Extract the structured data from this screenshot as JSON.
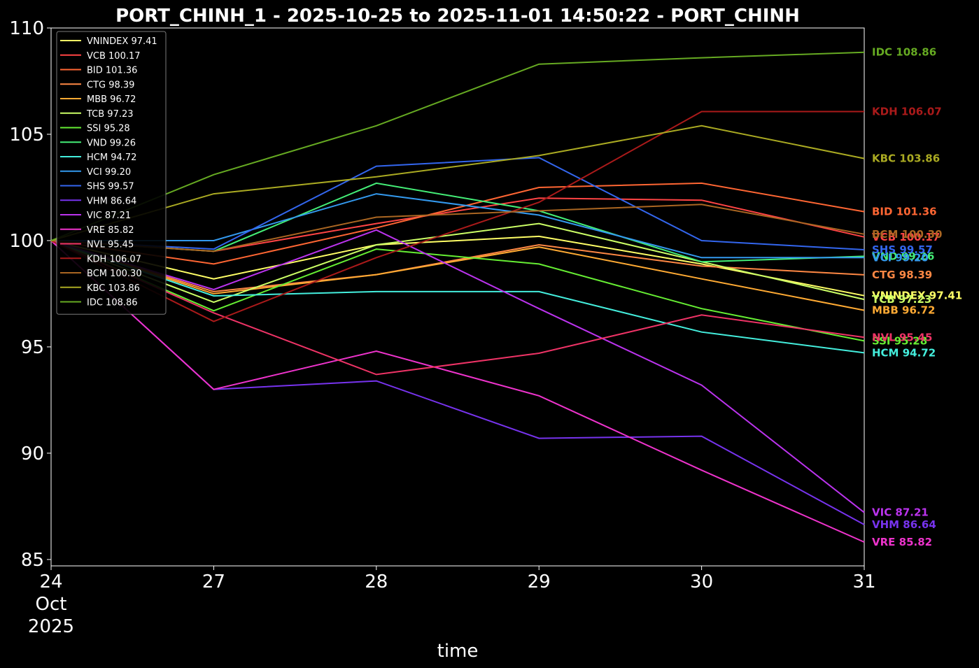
{
  "chart_data": {
    "type": "line",
    "title": "PORT_CHINH_1 - 2025-10-25 to 2025-11-01 14:50:22 - PORT_CHINH",
    "xlabel": "time",
    "ylabel": "",
    "x": [
      "2025-10-24",
      "2025-10-27",
      "2025-10-28",
      "2025-10-29",
      "2025-10-30",
      "2025-10-31"
    ],
    "x_tick_labels": [
      [
        "24",
        "Oct",
        "2025"
      ],
      [
        "27"
      ],
      [
        "28"
      ],
      [
        "29"
      ],
      [
        "30"
      ],
      [
        "31"
      ]
    ],
    "ylim": [
      84.7,
      110
    ],
    "y_ticks": [
      85,
      90,
      95,
      100,
      105,
      110
    ],
    "grid": false,
    "legend_position": "top-left",
    "background": "#000000",
    "series": [
      {
        "name": "VNINDEX",
        "legend": "VNINDEX 97.41",
        "end_label": "VNINDEX 97.41",
        "color": "#ffff66",
        "values": [
          100,
          98.2,
          99.8,
          100.2,
          98.9,
          97.41
        ]
      },
      {
        "name": "VCB",
        "legend": "VCB 100.17",
        "end_label": "VCB 100.17",
        "color": "#ff4444",
        "values": [
          100,
          99.5,
          100.8,
          102.0,
          101.9,
          100.17
        ]
      },
      {
        "name": "BID",
        "legend": "BID 101.36",
        "end_label": "BID 101.36",
        "color": "#ff6633",
        "values": [
          100,
          98.9,
          100.6,
          102.5,
          102.7,
          101.36
        ]
      },
      {
        "name": "CTG",
        "legend": "CTG 98.39",
        "end_label": "CTG 98.39",
        "color": "#ff8844",
        "values": [
          100,
          97.6,
          98.4,
          99.8,
          98.8,
          98.39
        ]
      },
      {
        "name": "MBB",
        "legend": "MBB 96.72",
        "end_label": "MBB 96.72",
        "color": "#ffaa33",
        "values": [
          100,
          97.5,
          98.4,
          99.7,
          98.2,
          96.72
        ]
      },
      {
        "name": "TCB",
        "legend": "TCB 97.23",
        "end_label": "TCB 97.23",
        "color": "#ccff66",
        "values": [
          100,
          97.1,
          99.8,
          100.8,
          99.0,
          97.23
        ]
      },
      {
        "name": "SSI",
        "legend": "SSI 95.28",
        "end_label": "SSI 95.28",
        "color": "#66ee33",
        "values": [
          100,
          96.7,
          99.6,
          98.9,
          96.8,
          95.28
        ]
      },
      {
        "name": "VND",
        "legend": "VND 99.26",
        "end_label": "VND 99.26",
        "color": "#44ee77",
        "values": [
          100,
          99.5,
          102.7,
          101.4,
          99.0,
          99.26
        ]
      },
      {
        "name": "HCM",
        "legend": "HCM 94.72",
        "end_label": "HCM 94.72",
        "color": "#44eedd",
        "values": [
          100,
          97.4,
          97.6,
          97.6,
          95.7,
          94.72
        ]
      },
      {
        "name": "VCI",
        "legend": "VCI 99.20",
        "end_label": "VCI 99.20",
        "color": "#3399ee",
        "values": [
          100,
          100.0,
          102.2,
          101.2,
          99.2,
          99.2
        ]
      },
      {
        "name": "SHS",
        "legend": "SHS 99.57",
        "end_label": "SHS 99.57",
        "color": "#3366ee",
        "values": [
          100,
          99.6,
          103.5,
          103.9,
          100.0,
          99.57
        ]
      },
      {
        "name": "VHM",
        "legend": "VHM 86.64",
        "end_label": "VHM 86.64",
        "color": "#7733ee",
        "values": [
          100,
          93.0,
          93.4,
          90.7,
          90.8,
          86.64
        ]
      },
      {
        "name": "VIC",
        "legend": "VIC 87.21",
        "end_label": "VIC 87.21",
        "color": "#bb33ee",
        "values": [
          100,
          97.7,
          100.5,
          96.8,
          93.2,
          87.21
        ]
      },
      {
        "name": "VRE",
        "legend": "VRE 85.82",
        "end_label": "VRE 85.82",
        "color": "#ee33cc",
        "values": [
          100,
          93.0,
          94.8,
          92.7,
          89.2,
          85.82
        ]
      },
      {
        "name": "NVL",
        "legend": "NVL 95.45",
        "end_label": "NVL 95.45",
        "color": "#ee3366",
        "values": [
          100,
          96.6,
          93.7,
          94.7,
          96.5,
          95.45
        ]
      },
      {
        "name": "KDH",
        "legend": "KDH 106.07",
        "end_label": "KDH 106.07",
        "color": "#aa1a1a",
        "values": [
          100,
          96.2,
          99.2,
          101.8,
          106.07,
          106.07
        ]
      },
      {
        "name": "BCM",
        "legend": "BCM 100.30",
        "end_label": "BCM 100.30",
        "color": "#aa6622",
        "values": [
          100,
          99.5,
          101.1,
          101.4,
          101.7,
          100.3
        ]
      },
      {
        "name": "KBC",
        "legend": "KBC 103.86",
        "end_label": "KBC 103.86",
        "color": "#aaaa22",
        "values": [
          100,
          102.2,
          103.0,
          104.0,
          105.4,
          103.86
        ]
      },
      {
        "name": "IDC",
        "legend": "IDC 108.86",
        "end_label": "IDC 108.86",
        "color": "#66aa22",
        "values": [
          100,
          103.1,
          105.4,
          108.3,
          108.6,
          108.86
        ]
      }
    ]
  }
}
